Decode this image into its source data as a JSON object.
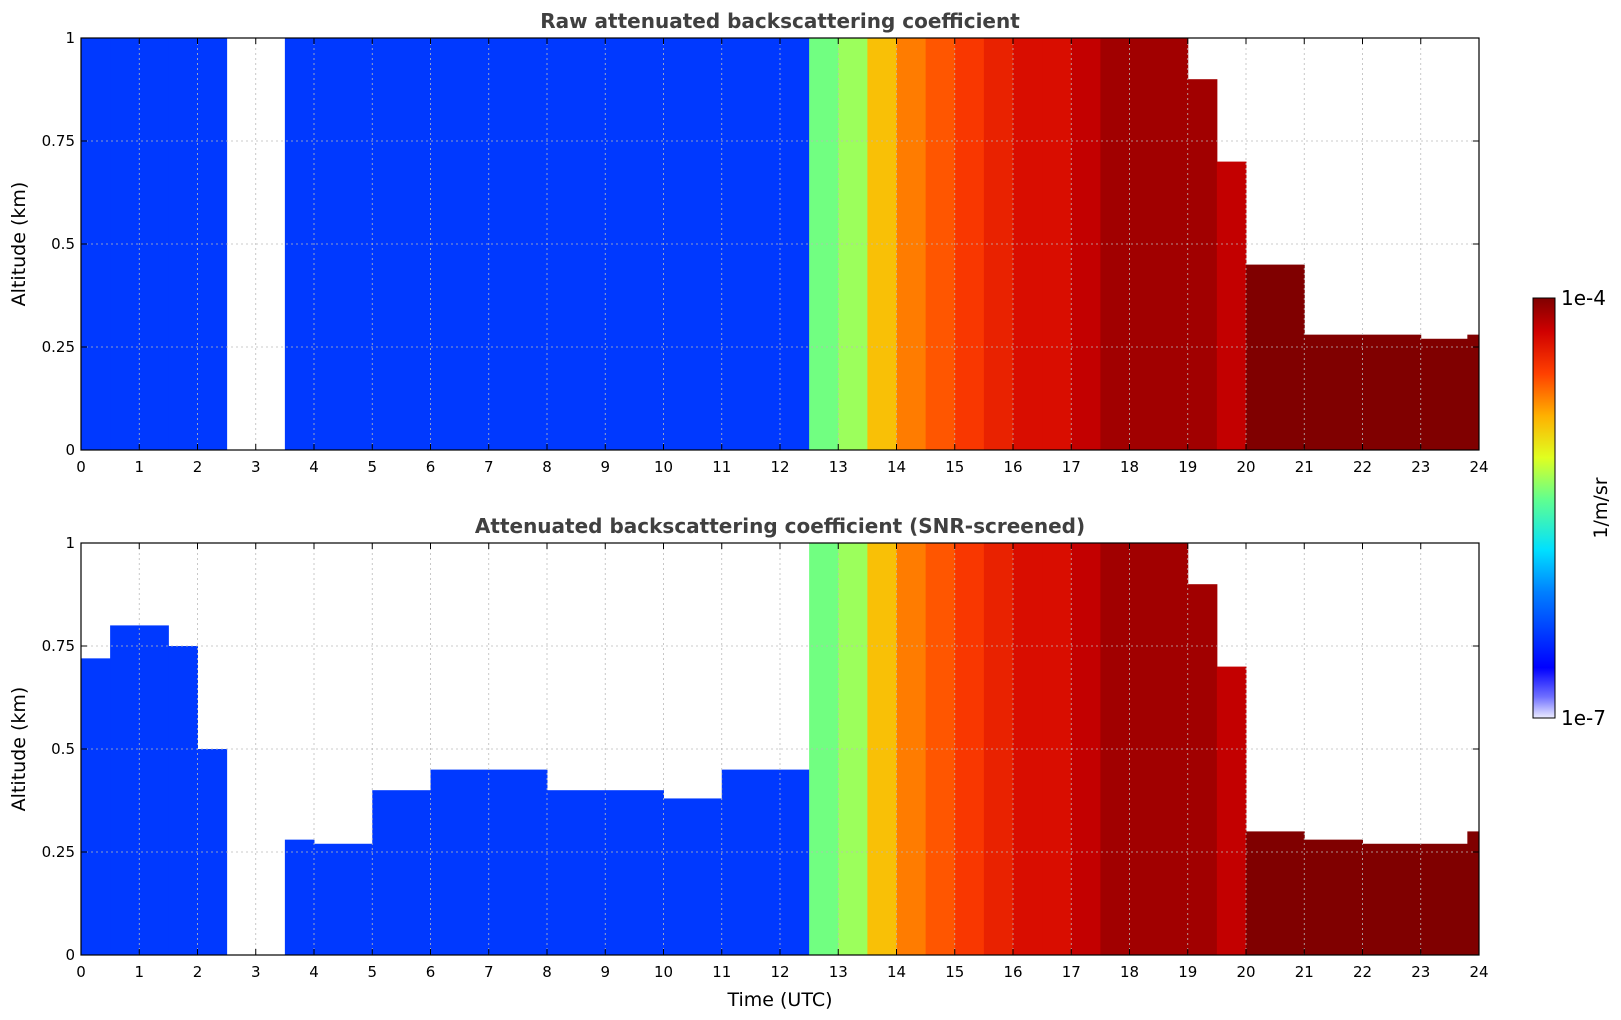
{
  "figure": {
    "colorbar": {
      "label": "1/m/sr",
      "max_label": "1e-4",
      "min_label": "1e-7",
      "scale": "log",
      "colormap": "jet"
    },
    "xlabel": "Time (UTC)"
  },
  "chart_data": [
    {
      "type": "heatmap",
      "title": "Raw attenuated backscattering coefficient",
      "xlabel": "",
      "ylabel": "Altitude (km)",
      "xlim": [
        0,
        24
      ],
      "ylim": [
        0,
        1
      ],
      "x_ticks": [
        "0",
        "1",
        "2",
        "3",
        "4",
        "5",
        "6",
        "7",
        "8",
        "9",
        "10",
        "11",
        "12",
        "13",
        "14",
        "15",
        "16",
        "17",
        "18",
        "19",
        "20",
        "21",
        "22",
        "23",
        "24"
      ],
      "y_ticks": [
        "0",
        "0.25",
        "0.5",
        "0.75",
        "1"
      ],
      "grid": true,
      "signal_profile": {
        "time_utc": [
          0.0,
          0.5,
          1.0,
          1.5,
          2.0,
          2.5,
          3.0,
          3.5,
          4.0,
          5.0,
          6.0,
          7.0,
          8.0,
          9.0,
          10.0,
          11.0,
          12.0,
          12.5,
          13.0,
          13.5,
          14.0,
          14.5,
          15.0,
          15.5,
          16.0,
          16.5,
          17.0,
          17.5,
          18.0,
          18.5,
          19.0,
          19.5,
          20.0,
          21.0,
          22.0,
          23.0,
          23.8
        ],
        "log10_beta": [
          -6.4,
          -6.4,
          -6.4,
          -6.4,
          -6.4,
          null,
          null,
          -6.4,
          -6.4,
          -6.4,
          -6.4,
          -6.4,
          -6.4,
          -6.4,
          -6.4,
          -6.4,
          -6.4,
          -5.4,
          -5.3,
          -4.9,
          -4.7,
          -4.6,
          -4.5,
          -4.4,
          -4.3,
          -4.3,
          -4.2,
          -4.1,
          -4.1,
          -4.1,
          -4.1,
          -4.2,
          -4.0,
          -4.0,
          -4.0,
          -4.0,
          -4.0
        ],
        "layer_top_km": [
          1,
          1,
          1,
          1,
          1,
          0,
          0,
          1,
          1,
          1,
          1,
          1,
          1,
          1,
          1,
          1,
          1,
          1,
          1,
          1,
          1,
          1,
          1,
          1,
          1,
          1,
          1,
          1,
          1,
          1,
          0.9,
          0.7,
          0.45,
          0.28,
          0.28,
          0.27,
          0.28
        ]
      }
    },
    {
      "type": "heatmap",
      "title": "Attenuated backscattering coefficient (SNR-screened)",
      "xlabel": "Time (UTC)",
      "ylabel": "Altitude (km)",
      "xlim": [
        0,
        24
      ],
      "ylim": [
        0,
        1
      ],
      "x_ticks": [
        "0",
        "1",
        "2",
        "3",
        "4",
        "5",
        "6",
        "7",
        "8",
        "9",
        "10",
        "11",
        "12",
        "13",
        "14",
        "15",
        "16",
        "17",
        "18",
        "19",
        "20",
        "21",
        "22",
        "23",
        "24"
      ],
      "y_ticks": [
        "0",
        "0.25",
        "0.5",
        "0.75",
        "1"
      ],
      "grid": true,
      "signal_profile": {
        "time_utc": [
          0.0,
          0.5,
          1.0,
          1.5,
          2.0,
          2.5,
          3.0,
          3.5,
          4.0,
          5.0,
          6.0,
          7.0,
          8.0,
          9.0,
          10.0,
          11.0,
          12.0,
          12.5,
          13.0,
          13.5,
          14.0,
          14.5,
          15.0,
          15.5,
          16.0,
          16.5,
          17.0,
          17.5,
          18.0,
          18.5,
          19.0,
          19.5,
          20.0,
          21.0,
          22.0,
          23.0,
          23.8
        ],
        "log10_beta": [
          -6.4,
          -6.4,
          -6.4,
          -6.4,
          -6.4,
          null,
          null,
          -6.4,
          -6.4,
          -6.4,
          -6.4,
          -6.4,
          -6.4,
          -6.4,
          -6.4,
          -6.4,
          -6.4,
          -5.4,
          -5.3,
          -4.9,
          -4.7,
          -4.6,
          -4.5,
          -4.4,
          -4.3,
          -4.3,
          -4.2,
          -4.1,
          -4.1,
          -4.1,
          -4.1,
          -4.2,
          -4.0,
          -4.0,
          -4.0,
          -4.0,
          -4.0
        ],
        "layer_top_km": [
          0.72,
          0.8,
          0.8,
          0.75,
          0.5,
          0,
          0,
          0.28,
          0.27,
          0.4,
          0.45,
          0.45,
          0.4,
          0.4,
          0.38,
          0.45,
          0.45,
          1,
          1,
          1,
          1,
          1,
          1,
          1,
          1,
          1,
          1,
          1,
          1,
          1,
          0.9,
          0.7,
          0.3,
          0.28,
          0.27,
          0.27,
          0.3
        ]
      }
    }
  ]
}
